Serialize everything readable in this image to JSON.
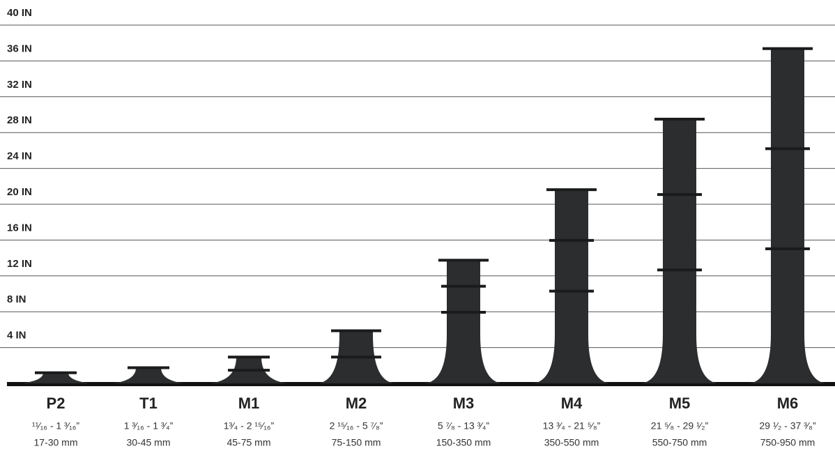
{
  "chart_data": {
    "type": "pedestal",
    "categories": [
      "P2",
      "T1",
      "M1",
      "M2",
      "M3",
      "M4",
      "M5",
      "M6"
    ],
    "values": [
      1.1875,
      1.75,
      2.9375,
      5.875,
      13.75,
      21.625,
      29.5,
      37.375
    ],
    "inch_labels": [
      "¹¹⁄₁₆ - 1 ³⁄₁₆”",
      "1 ³⁄₁₆ - 1 ³⁄₄”",
      "1³⁄₄ - 2 ¹⁵⁄₁₆”",
      "2 ¹⁵⁄₁₆ - 5 ⁷⁄₈”",
      "5 ⁷⁄₈ - 13 ³⁄₄”",
      "13 ³⁄₄ - 21 ⁵⁄₈”",
      "21 ⁵⁄₈ - 29 ¹⁄₂”",
      "29 ¹⁄₂ - 37 ³⁄₈”"
    ],
    "mm_labels": [
      "17-30 mm",
      "30-45 mm",
      "45-75 mm",
      "75-150 mm",
      "150-350 mm",
      "350-550 mm",
      "550-750 mm",
      "750-950 mm"
    ],
    "color": "#2b2d2f",
    "ylim": [
      0,
      40
    ],
    "yticks": [
      {
        "value": 4,
        "label": "4 IN"
      },
      {
        "value": 8,
        "label": "8 IN"
      },
      {
        "value": 12,
        "label": "12 IN"
      },
      {
        "value": 16,
        "label": "16 IN"
      },
      {
        "value": 20,
        "label": "20 IN"
      },
      {
        "value": 24,
        "label": "24 IN"
      },
      {
        "value": 28,
        "label": "28 IN"
      },
      {
        "value": 32,
        "label": "32 IN"
      },
      {
        "value": 36,
        "label": "36 IN"
      },
      {
        "value": 40,
        "label": "40 IN"
      }
    ],
    "grid": true
  }
}
